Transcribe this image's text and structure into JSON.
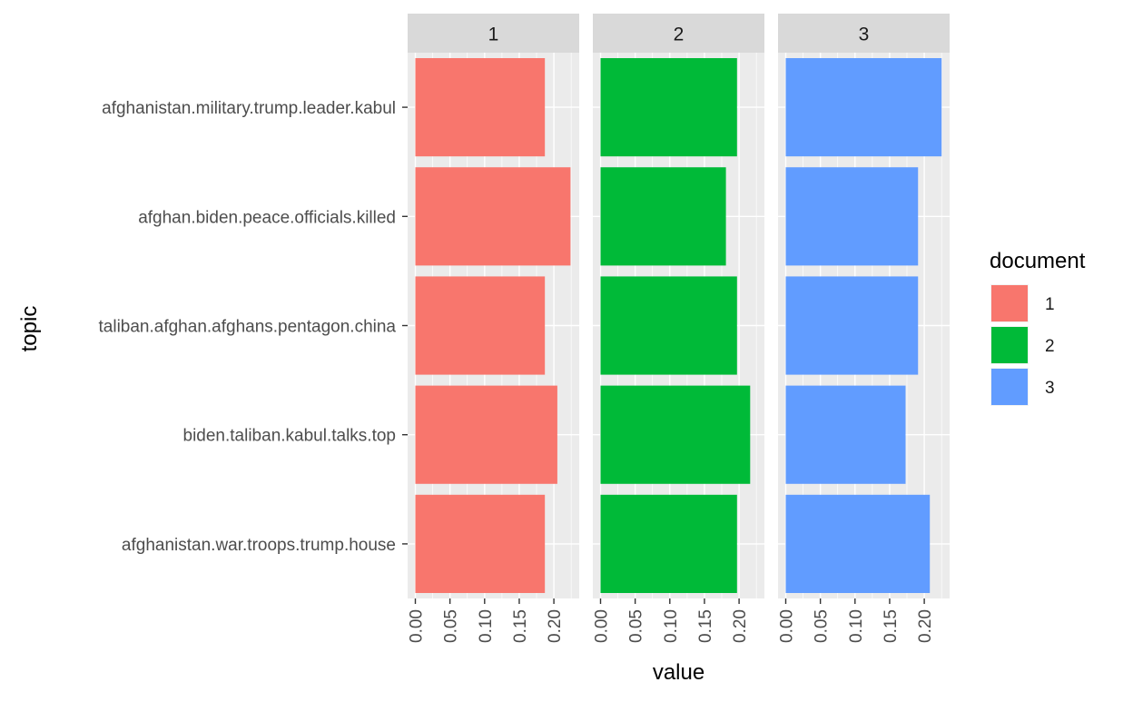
{
  "chart_data": {
    "type": "bar",
    "orientation": "horizontal",
    "facet_by": "document",
    "xlabel": "value",
    "ylabel": "topic",
    "xlim": [
      0,
      0.235
    ],
    "x_ticks": [
      "0.00",
      "0.05",
      "0.10",
      "0.15",
      "0.20"
    ],
    "categories": [
      "afghanistan.military.trump.leader.kabul",
      "afghan.biden.peace.officials.killed",
      "taliban.afghan.afghans.pentagon.china",
      "biden.taliban.kabul.talks.top",
      "afghanistan.war.troops.trump.house"
    ],
    "legend": {
      "title": "document",
      "position": "right",
      "labels": [
        "1",
        "2",
        "3"
      ]
    },
    "colors": [
      "#F8766D",
      "#00BA38",
      "#619CFF"
    ],
    "panel_background": "#EBEBEB",
    "strip_background": "#D9D9D9",
    "grid": true,
    "series": [
      {
        "name": "1",
        "values": [
          0.187,
          0.224,
          0.187,
          0.205,
          0.187
        ]
      },
      {
        "name": "2",
        "values": [
          0.197,
          0.181,
          0.197,
          0.216,
          0.197
        ]
      },
      {
        "name": "3",
        "values": [
          0.225,
          0.191,
          0.191,
          0.173,
          0.208
        ]
      }
    ]
  }
}
